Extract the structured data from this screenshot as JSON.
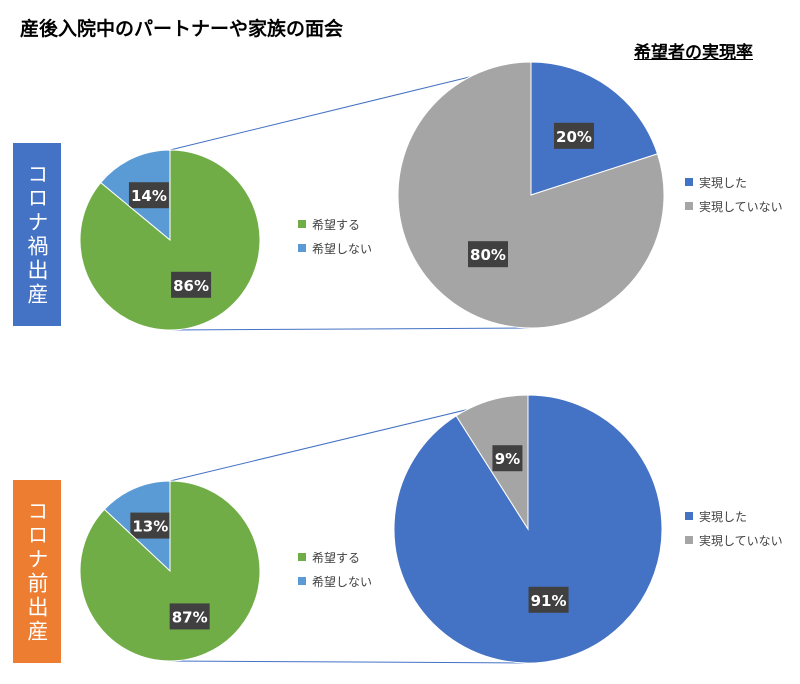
{
  "title": "産後入院中のパートナーや家族の面会",
  "subtitle": "希望者の実現率",
  "colors": {
    "green": "#70ad47",
    "lightblue": "#5b9bd5",
    "blue": "#4472c4",
    "gray": "#a5a5a5",
    "covid_box": "#4472c4",
    "pre_box": "#ed7d31",
    "label_bg": "#404040",
    "connector": "#4472c4"
  },
  "rows": [
    {
      "period_label": "コロナ禍出産",
      "small_legend": [
        "希望する",
        "希望しない"
      ],
      "large_legend": [
        "実現した",
        "実現していない"
      ]
    },
    {
      "period_label": "コロナ前出産",
      "small_legend": [
        "希望する",
        "希望しない"
      ],
      "large_legend": [
        "実現した",
        "実現していない"
      ]
    }
  ],
  "chart_data": [
    {
      "type": "pie",
      "title": "",
      "categories": [
        "希望しない",
        "希望する"
      ],
      "values": [
        14,
        86
      ],
      "labels": [
        "14%",
        "86%"
      ],
      "colors": [
        "#5b9bd5",
        "#70ad47"
      ],
      "legend": "right"
    },
    {
      "type": "pie",
      "title": "希望者の実現率",
      "categories": [
        "実現した",
        "実現していない"
      ],
      "values": [
        20,
        80
      ],
      "labels": [
        "20%",
        "80%"
      ],
      "colors": [
        "#4472c4",
        "#a5a5a5"
      ],
      "legend": "right"
    },
    {
      "type": "pie",
      "title": "",
      "categories": [
        "希望しない",
        "希望する"
      ],
      "values": [
        13,
        87
      ],
      "labels": [
        "13%",
        "87%"
      ],
      "colors": [
        "#5b9bd5",
        "#70ad47"
      ],
      "legend": "right"
    },
    {
      "type": "pie",
      "title": "希望者の実現率",
      "categories": [
        "実現した",
        "実現していない"
      ],
      "values": [
        91,
        9
      ],
      "labels": [
        "91%",
        "9%"
      ],
      "colors": [
        "#4472c4",
        "#a5a5a5"
      ],
      "legend": "right"
    }
  ]
}
